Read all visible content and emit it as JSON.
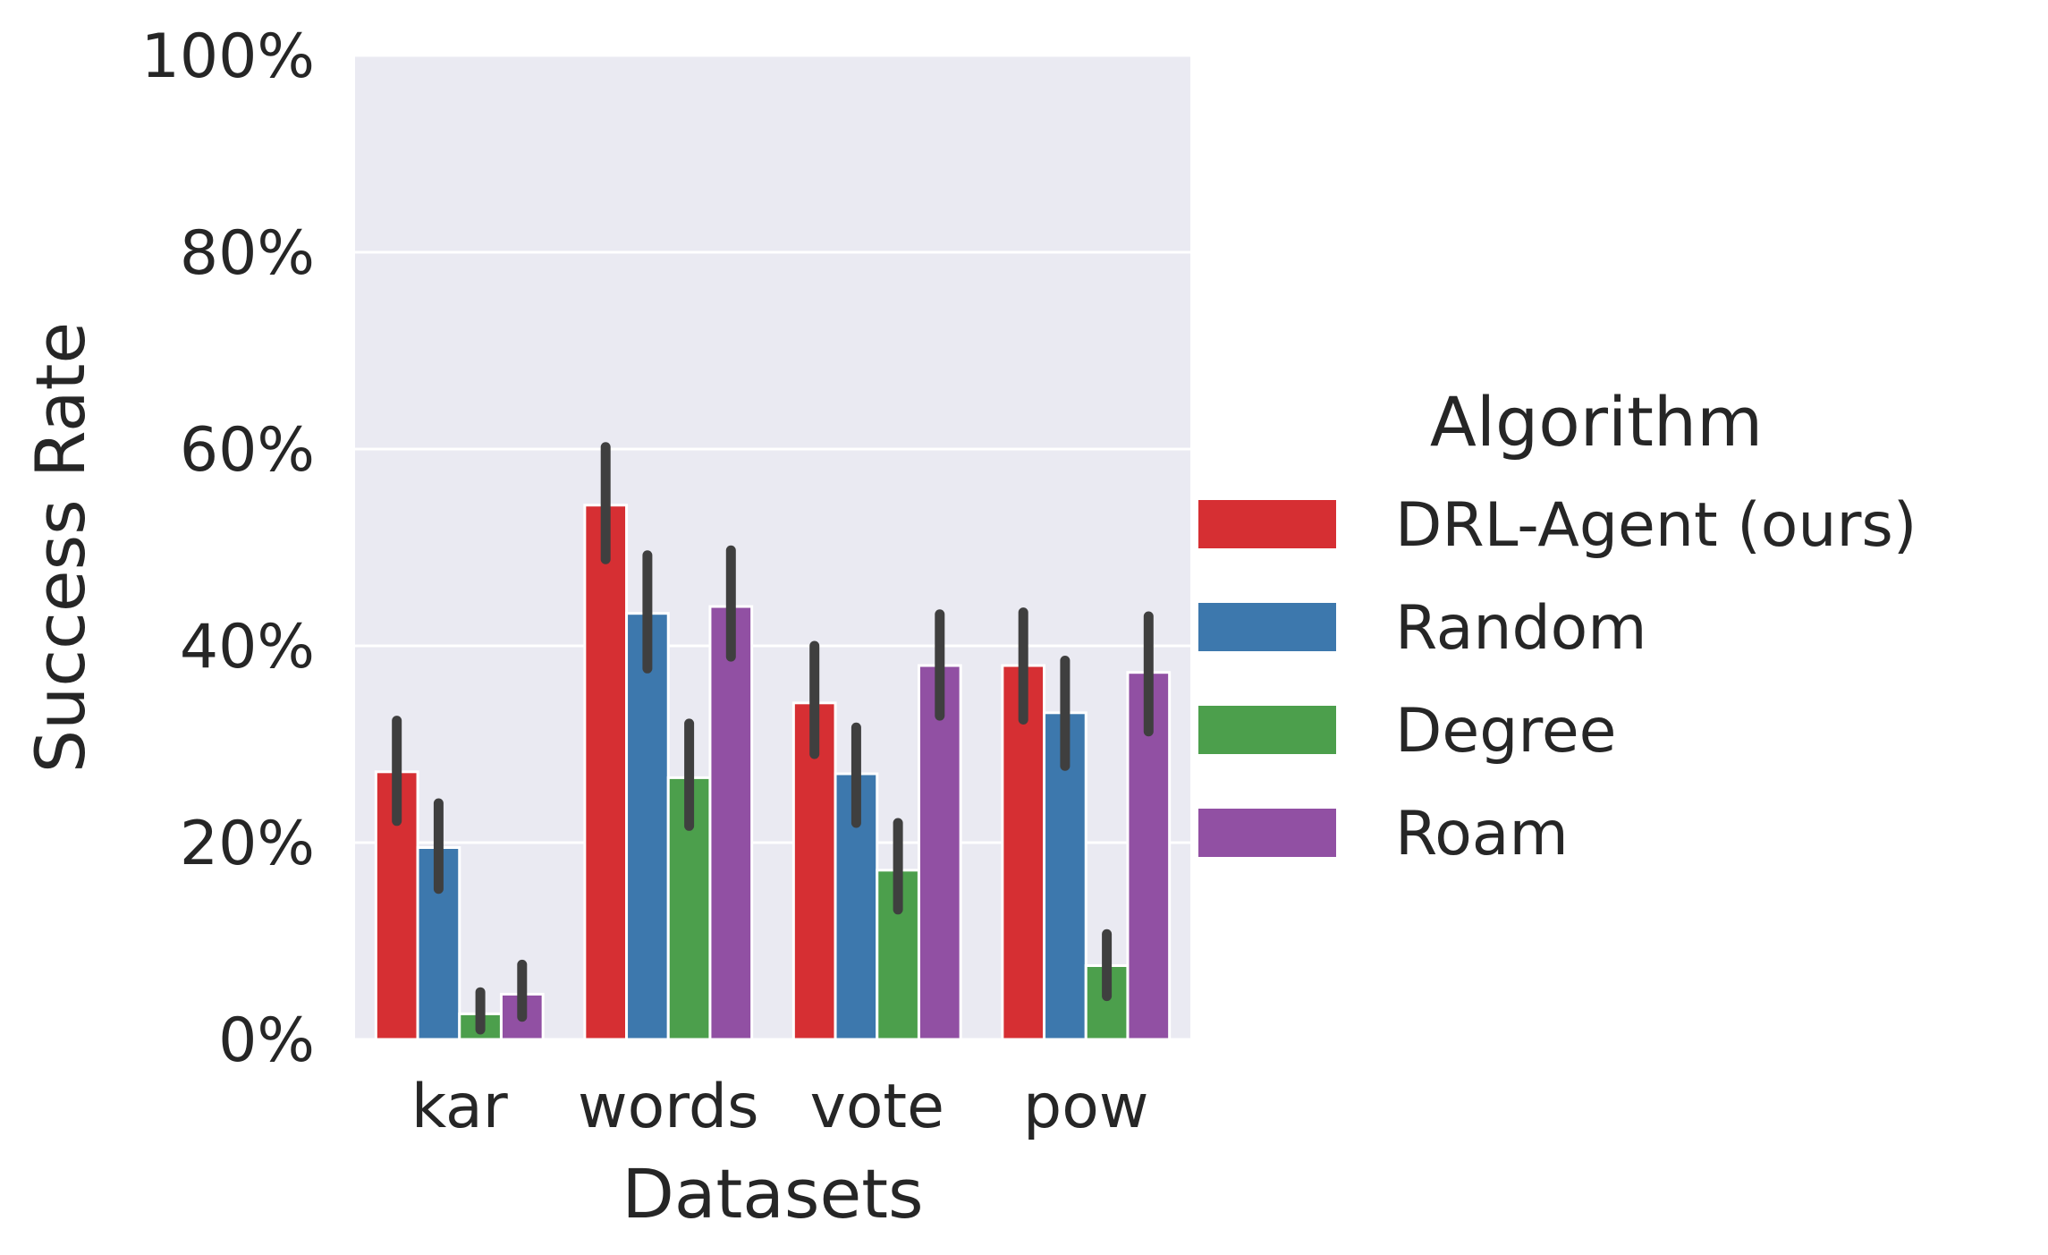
{
  "chart_data": {
    "type": "bar",
    "xlabel": "Datasets",
    "ylabel": "Success Rate",
    "ylim": [
      0,
      100
    ],
    "yticks": [
      "0%",
      "20%",
      "40%",
      "60%",
      "80%",
      "100%"
    ],
    "grid": true,
    "legend": {
      "title": "Algorithm",
      "placement": "right"
    },
    "categories": [
      "kar",
      "words",
      "vote",
      "pow"
    ],
    "series": [
      {
        "name": "DRL-Agent (ours)",
        "color": "#d62f33",
        "values": [
          27.2,
          54.3,
          34.2,
          38.0
        ],
        "err_low": [
          22.2,
          48.8,
          29.0,
          32.5
        ],
        "err_high": [
          32.4,
          60.2,
          40.0,
          43.4
        ]
      },
      {
        "name": "Random",
        "color": "#3d78ad",
        "values": [
          19.5,
          43.3,
          27.0,
          33.2
        ],
        "err_low": [
          15.3,
          37.7,
          22.0,
          27.8
        ],
        "err_high": [
          24.0,
          49.2,
          31.7,
          38.5
        ]
      },
      {
        "name": "Degree",
        "color": "#4c9f4c",
        "values": [
          2.6,
          26.6,
          17.2,
          7.5
        ],
        "err_low": [
          1.0,
          21.7,
          13.2,
          4.4
        ],
        "err_high": [
          4.8,
          32.1,
          22.0,
          10.7
        ]
      },
      {
        "name": "Roam",
        "color": "#9150a3",
        "values": [
          4.6,
          44.0,
          38.0,
          37.3
        ],
        "err_low": [
          2.3,
          38.9,
          32.9,
          31.3
        ],
        "err_high": [
          7.6,
          49.7,
          43.2,
          43.0
        ]
      }
    ]
  }
}
